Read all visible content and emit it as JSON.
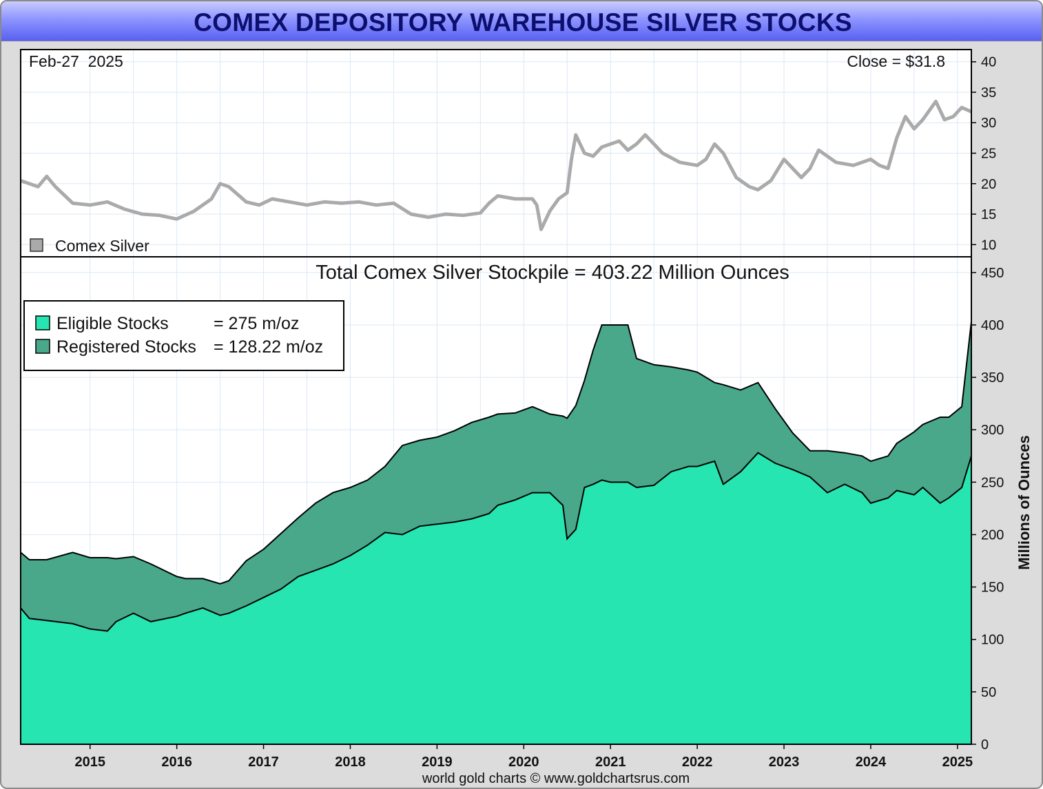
{
  "title": "COMEX DEPOSITORY WAREHOUSE SILVER STOCKS",
  "footer": "world gold charts © www.goldchartsrus.com",
  "colors": {
    "eligible": "#27e5b0",
    "registered": "#4aa88a",
    "price_line": "#aaaaaa",
    "grid": "#dbe8f5",
    "title_text": "#0d0f6e"
  },
  "chart_data": [
    {
      "type": "line",
      "panel": "top",
      "date_label": "Feb-27  2025",
      "close_label": "Close = $31.8",
      "ylim": [
        8,
        42
      ],
      "yticks": [
        10,
        15,
        20,
        25,
        30,
        35,
        40
      ],
      "grid": true,
      "legend": {
        "position": "bottom-left",
        "entries": [
          {
            "label": "Comex Silver",
            "color": "#aaaaaa"
          }
        ]
      },
      "series": [
        {
          "name": "Comex Silver",
          "x": [
            2014.2,
            2014.4,
            2014.5,
            2014.6,
            2014.8,
            2015.0,
            2015.2,
            2015.4,
            2015.6,
            2015.8,
            2016.0,
            2016.2,
            2016.4,
            2016.5,
            2016.6,
            2016.8,
            2016.95,
            2017.1,
            2017.3,
            2017.5,
            2017.7,
            2017.9,
            2018.1,
            2018.3,
            2018.5,
            2018.7,
            2018.9,
            2019.1,
            2019.3,
            2019.5,
            2019.6,
            2019.7,
            2019.9,
            2020.1,
            2020.15,
            2020.2,
            2020.3,
            2020.4,
            2020.5,
            2020.55,
            2020.6,
            2020.7,
            2020.8,
            2020.9,
            2021.1,
            2021.2,
            2021.3,
            2021.4,
            2021.6,
            2021.8,
            2022.0,
            2022.1,
            2022.2,
            2022.3,
            2022.45,
            2022.6,
            2022.7,
            2022.85,
            2023.0,
            2023.1,
            2023.2,
            2023.3,
            2023.4,
            2023.6,
            2023.8,
            2024.0,
            2024.1,
            2024.2,
            2024.3,
            2024.4,
            2024.5,
            2024.6,
            2024.75,
            2024.85,
            2024.95,
            2025.05,
            2025.16
          ],
          "values": [
            20.5,
            19.5,
            21.2,
            19.5,
            16.8,
            16.5,
            17.0,
            15.8,
            15.0,
            14.8,
            14.2,
            15.5,
            17.5,
            20.0,
            19.5,
            17.0,
            16.5,
            17.5,
            17.0,
            16.5,
            17.0,
            16.8,
            17.0,
            16.5,
            16.8,
            15.0,
            14.5,
            15.0,
            14.8,
            15.2,
            16.8,
            18.0,
            17.5,
            17.5,
            16.5,
            12.5,
            15.5,
            17.5,
            18.5,
            24.0,
            28.0,
            25.0,
            24.5,
            26.0,
            27.0,
            25.5,
            26.5,
            28.0,
            25.0,
            23.5,
            23.0,
            24.0,
            26.5,
            25.0,
            21.0,
            19.5,
            19.0,
            20.5,
            24.0,
            22.5,
            21.0,
            22.5,
            25.5,
            23.5,
            23.0,
            24.0,
            23.0,
            22.5,
            27.5,
            31.0,
            29.0,
            30.5,
            33.5,
            30.5,
            31.0,
            32.5,
            31.8
          ]
        }
      ]
    },
    {
      "type": "area",
      "panel": "bottom",
      "stacked": true,
      "title": "Total Comex Silver Stockpile = 403.22 Million Ounces",
      "ylabel": "Millions of Ounces",
      "ylim": [
        0,
        465
      ],
      "yticks": [
        0,
        50,
        100,
        150,
        200,
        250,
        300,
        350,
        400,
        450
      ],
      "xlim": [
        2014.2,
        2025.16
      ],
      "xticks": [
        "2015",
        "2016",
        "2017",
        "2018",
        "2019",
        "2020",
        "2021",
        "2022",
        "2023",
        "2024",
        "2025"
      ],
      "grid": true,
      "legend": {
        "position": "top-left",
        "entries": [
          {
            "label": "Eligible Stocks",
            "value_text": "= 275 m/oz",
            "color": "#27e5b0"
          },
          {
            "label": "Registered Stocks",
            "value_text": "= 128.22 m/oz",
            "color": "#4aa88a"
          }
        ]
      },
      "series": [
        {
          "name": "Eligible Stocks",
          "x": [
            2014.2,
            2014.3,
            2014.5,
            2014.8,
            2015.0,
            2015.2,
            2015.3,
            2015.5,
            2015.7,
            2016.0,
            2016.1,
            2016.3,
            2016.5,
            2016.6,
            2016.8,
            2017.0,
            2017.2,
            2017.4,
            2017.6,
            2017.8,
            2018.0,
            2018.2,
            2018.4,
            2018.6,
            2018.8,
            2019.0,
            2019.2,
            2019.4,
            2019.6,
            2019.7,
            2019.9,
            2020.1,
            2020.3,
            2020.45,
            2020.5,
            2020.6,
            2020.7,
            2020.8,
            2020.9,
            2021.0,
            2021.2,
            2021.3,
            2021.5,
            2021.7,
            2021.9,
            2022.0,
            2022.2,
            2022.3,
            2022.5,
            2022.7,
            2022.9,
            2023.1,
            2023.3,
            2023.5,
            2023.7,
            2023.9,
            2024.0,
            2024.2,
            2024.3,
            2024.5,
            2024.6,
            2024.8,
            2024.9,
            2025.05,
            2025.16
          ],
          "values": [
            130,
            120,
            118,
            115,
            110,
            108,
            117,
            125,
            117,
            122,
            125,
            130,
            123,
            125,
            132,
            140,
            148,
            160,
            166,
            172,
            180,
            190,
            202,
            200,
            208,
            210,
            212,
            215,
            220,
            228,
            233,
            240,
            240,
            228,
            196,
            205,
            245,
            248,
            252,
            250,
            250,
            245,
            247,
            260,
            265,
            265,
            270,
            248,
            260,
            278,
            268,
            262,
            255,
            240,
            248,
            240,
            230,
            235,
            242,
            238,
            245,
            230,
            235,
            245,
            275
          ]
        },
        {
          "name": "Registered Stocks",
          "x": [
            2014.2,
            2014.3,
            2014.5,
            2014.8,
            2015.0,
            2015.2,
            2015.3,
            2015.5,
            2015.7,
            2016.0,
            2016.1,
            2016.3,
            2016.5,
            2016.6,
            2016.8,
            2017.0,
            2017.2,
            2017.4,
            2017.6,
            2017.8,
            2018.0,
            2018.2,
            2018.4,
            2018.6,
            2018.8,
            2019.0,
            2019.2,
            2019.4,
            2019.6,
            2019.7,
            2019.9,
            2020.1,
            2020.3,
            2020.45,
            2020.5,
            2020.6,
            2020.7,
            2020.8,
            2020.9,
            2021.0,
            2021.2,
            2021.3,
            2021.5,
            2021.7,
            2021.9,
            2022.0,
            2022.2,
            2022.3,
            2022.5,
            2022.7,
            2022.9,
            2023.1,
            2023.3,
            2023.5,
            2023.7,
            2023.9,
            2024.0,
            2024.2,
            2024.3,
            2024.5,
            2024.6,
            2024.8,
            2024.9,
            2025.05,
            2025.16
          ],
          "values": [
            53,
            56,
            58,
            68,
            68,
            70,
            60,
            54,
            55,
            38,
            33,
            28,
            30,
            31,
            43,
            46,
            53,
            56,
            64,
            68,
            65,
            62,
            63,
            85,
            82,
            83,
            87,
            92,
            92,
            87,
            83,
            82,
            75,
            85,
            115,
            118,
            102,
            128,
            148,
            150,
            150,
            123,
            115,
            100,
            92,
            90,
            75,
            95,
            78,
            67,
            52,
            35,
            25,
            40,
            30,
            35,
            40,
            40,
            45,
            60,
            60,
            82,
            77,
            77,
            128.22
          ]
        }
      ]
    }
  ]
}
